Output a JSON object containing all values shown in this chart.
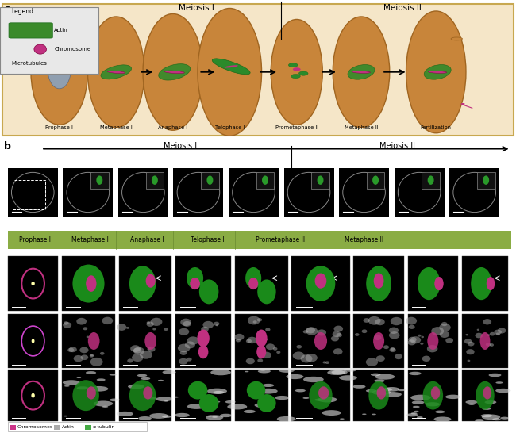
{
  "panel_a_bg": "#f5e6c8",
  "border_color": "#c8a850",
  "cell_color": "#c8853a",
  "cell_edge": "#a06520",
  "chromosome_color": "#c03080",
  "legend_bg": "#e8e8e8",
  "stage_labels_a": [
    "Prophase I",
    "Metaphase I",
    "Anaphase I",
    "Telophase I",
    "Prometaphase II",
    "Metaphase II",
    "Fertilization"
  ],
  "panel_b_stages": [
    "Prophase I",
    "Metaphase I",
    "Anaphase I",
    "Telophase I",
    "Prometaphase II",
    "Metaphase II"
  ],
  "green_bar_color": "#8aac44",
  "bottom_legend": {
    "chromosomes_color": "#cc3388",
    "actin_color": "#aaaaaa",
    "tubulin_color": "#44aa44"
  },
  "figsize": [
    6.5,
    5.46
  ],
  "dpi": 100
}
